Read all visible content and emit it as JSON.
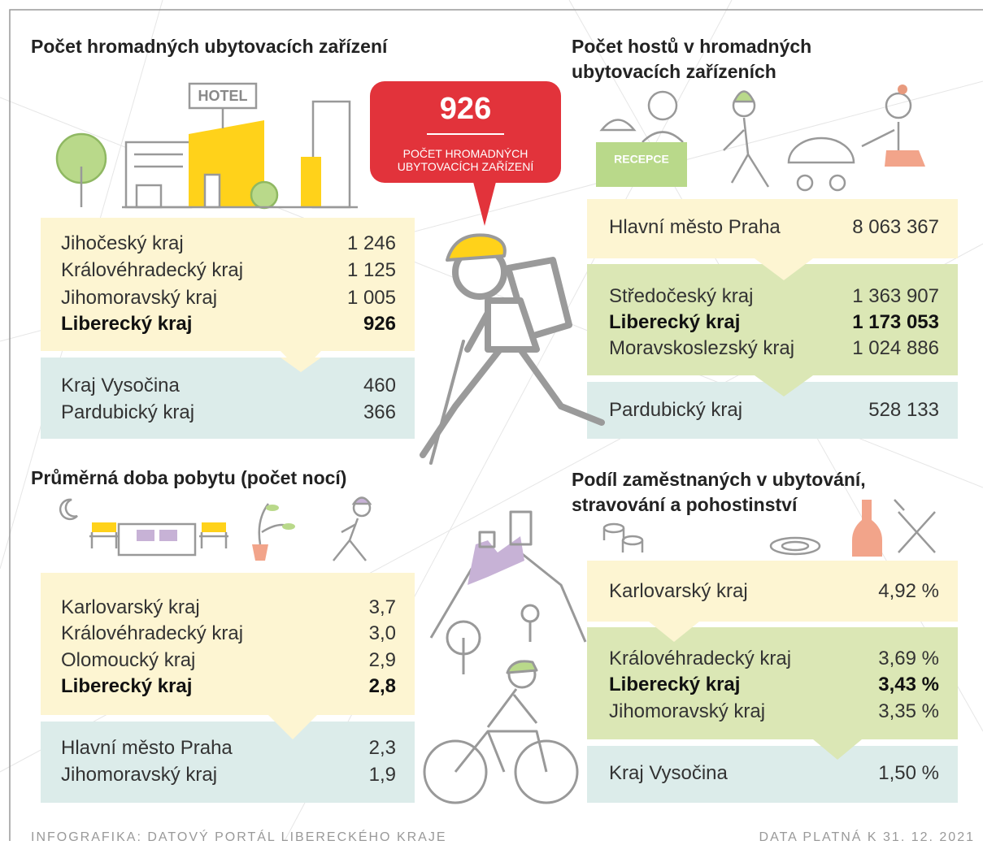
{
  "callout": {
    "value": "926",
    "label": [
      "POČET HROMADNÝCH",
      "UBYTOVACÍCH ZAŘÍZENÍ"
    ]
  },
  "icon_labels": {
    "hotel": "HOTEL",
    "reception": "RECEPCE"
  },
  "panels": [
    {
      "title": [
        "Počet hromadných ubytovacích zařízení"
      ],
      "groups": [
        {
          "rows": [
            [
              "Jihočeský kraj",
              "1 246"
            ],
            [
              "Královéhradecký kraj",
              "1 125"
            ],
            [
              "Jihomoravský kraj",
              "1 005"
            ],
            [
              "Liberecký kraj",
              "926"
            ]
          ]
        },
        {
          "rows": [
            [
              "Kraj Vysočina",
              "460"
            ],
            [
              "Pardubický kraj",
              "366"
            ]
          ]
        }
      ]
    },
    {
      "title": [
        "Počet hostů v hromadných",
        "ubytovacích zařízeních"
      ],
      "groups": [
        {
          "rows": [
            [
              "Hlavní město Praha",
              "8 063 367"
            ]
          ]
        },
        {
          "rows": [
            [
              "Středočeský kraj",
              "1 363 907"
            ],
            [
              "Liberecký kraj",
              "1 173 053"
            ],
            [
              "Moravskoslezský kraj",
              "1 024 886"
            ]
          ]
        },
        {
          "rows": [
            [
              "Pardubický kraj",
              "528 133"
            ]
          ]
        }
      ]
    },
    {
      "title": [
        "Průměrná doba pobytu (počet nocí)"
      ],
      "groups": [
        {
          "rows": [
            [
              "Karlovarský kraj",
              "3,7"
            ],
            [
              "Královéhradecký kraj",
              "3,0"
            ],
            [
              "Olomoucký kraj",
              "2,9"
            ],
            [
              "Liberecký kraj",
              "2,8"
            ]
          ]
        },
        {
          "rows": [
            [
              "Hlavní město Praha",
              "2,3"
            ],
            [
              "Jihomoravský kraj",
              "1,9"
            ]
          ]
        }
      ]
    },
    {
      "title": [
        "Podíl zaměstnaných v ubytování,",
        "stravování a pohostinství"
      ],
      "groups": [
        {
          "rows": [
            [
              "Karlovarský kraj",
              "4,92 %"
            ]
          ]
        },
        {
          "rows": [
            [
              "Královéhradecký kraj",
              "3,69 %"
            ],
            [
              "Liberecký kraj",
              "3,43 %"
            ],
            [
              "Jihomoravský kraj",
              "3,35 %"
            ]
          ]
        },
        {
          "rows": [
            [
              "Kraj Vysočina",
              "1,50 %"
            ]
          ]
        }
      ]
    }
  ],
  "footer": {
    "source": "INFOGRAFIKA: DATOVÝ PORTÁL LIBERECKÉHO KRAJE",
    "date": "DATA PLATNÁ K 31. 12. 2021"
  }
}
